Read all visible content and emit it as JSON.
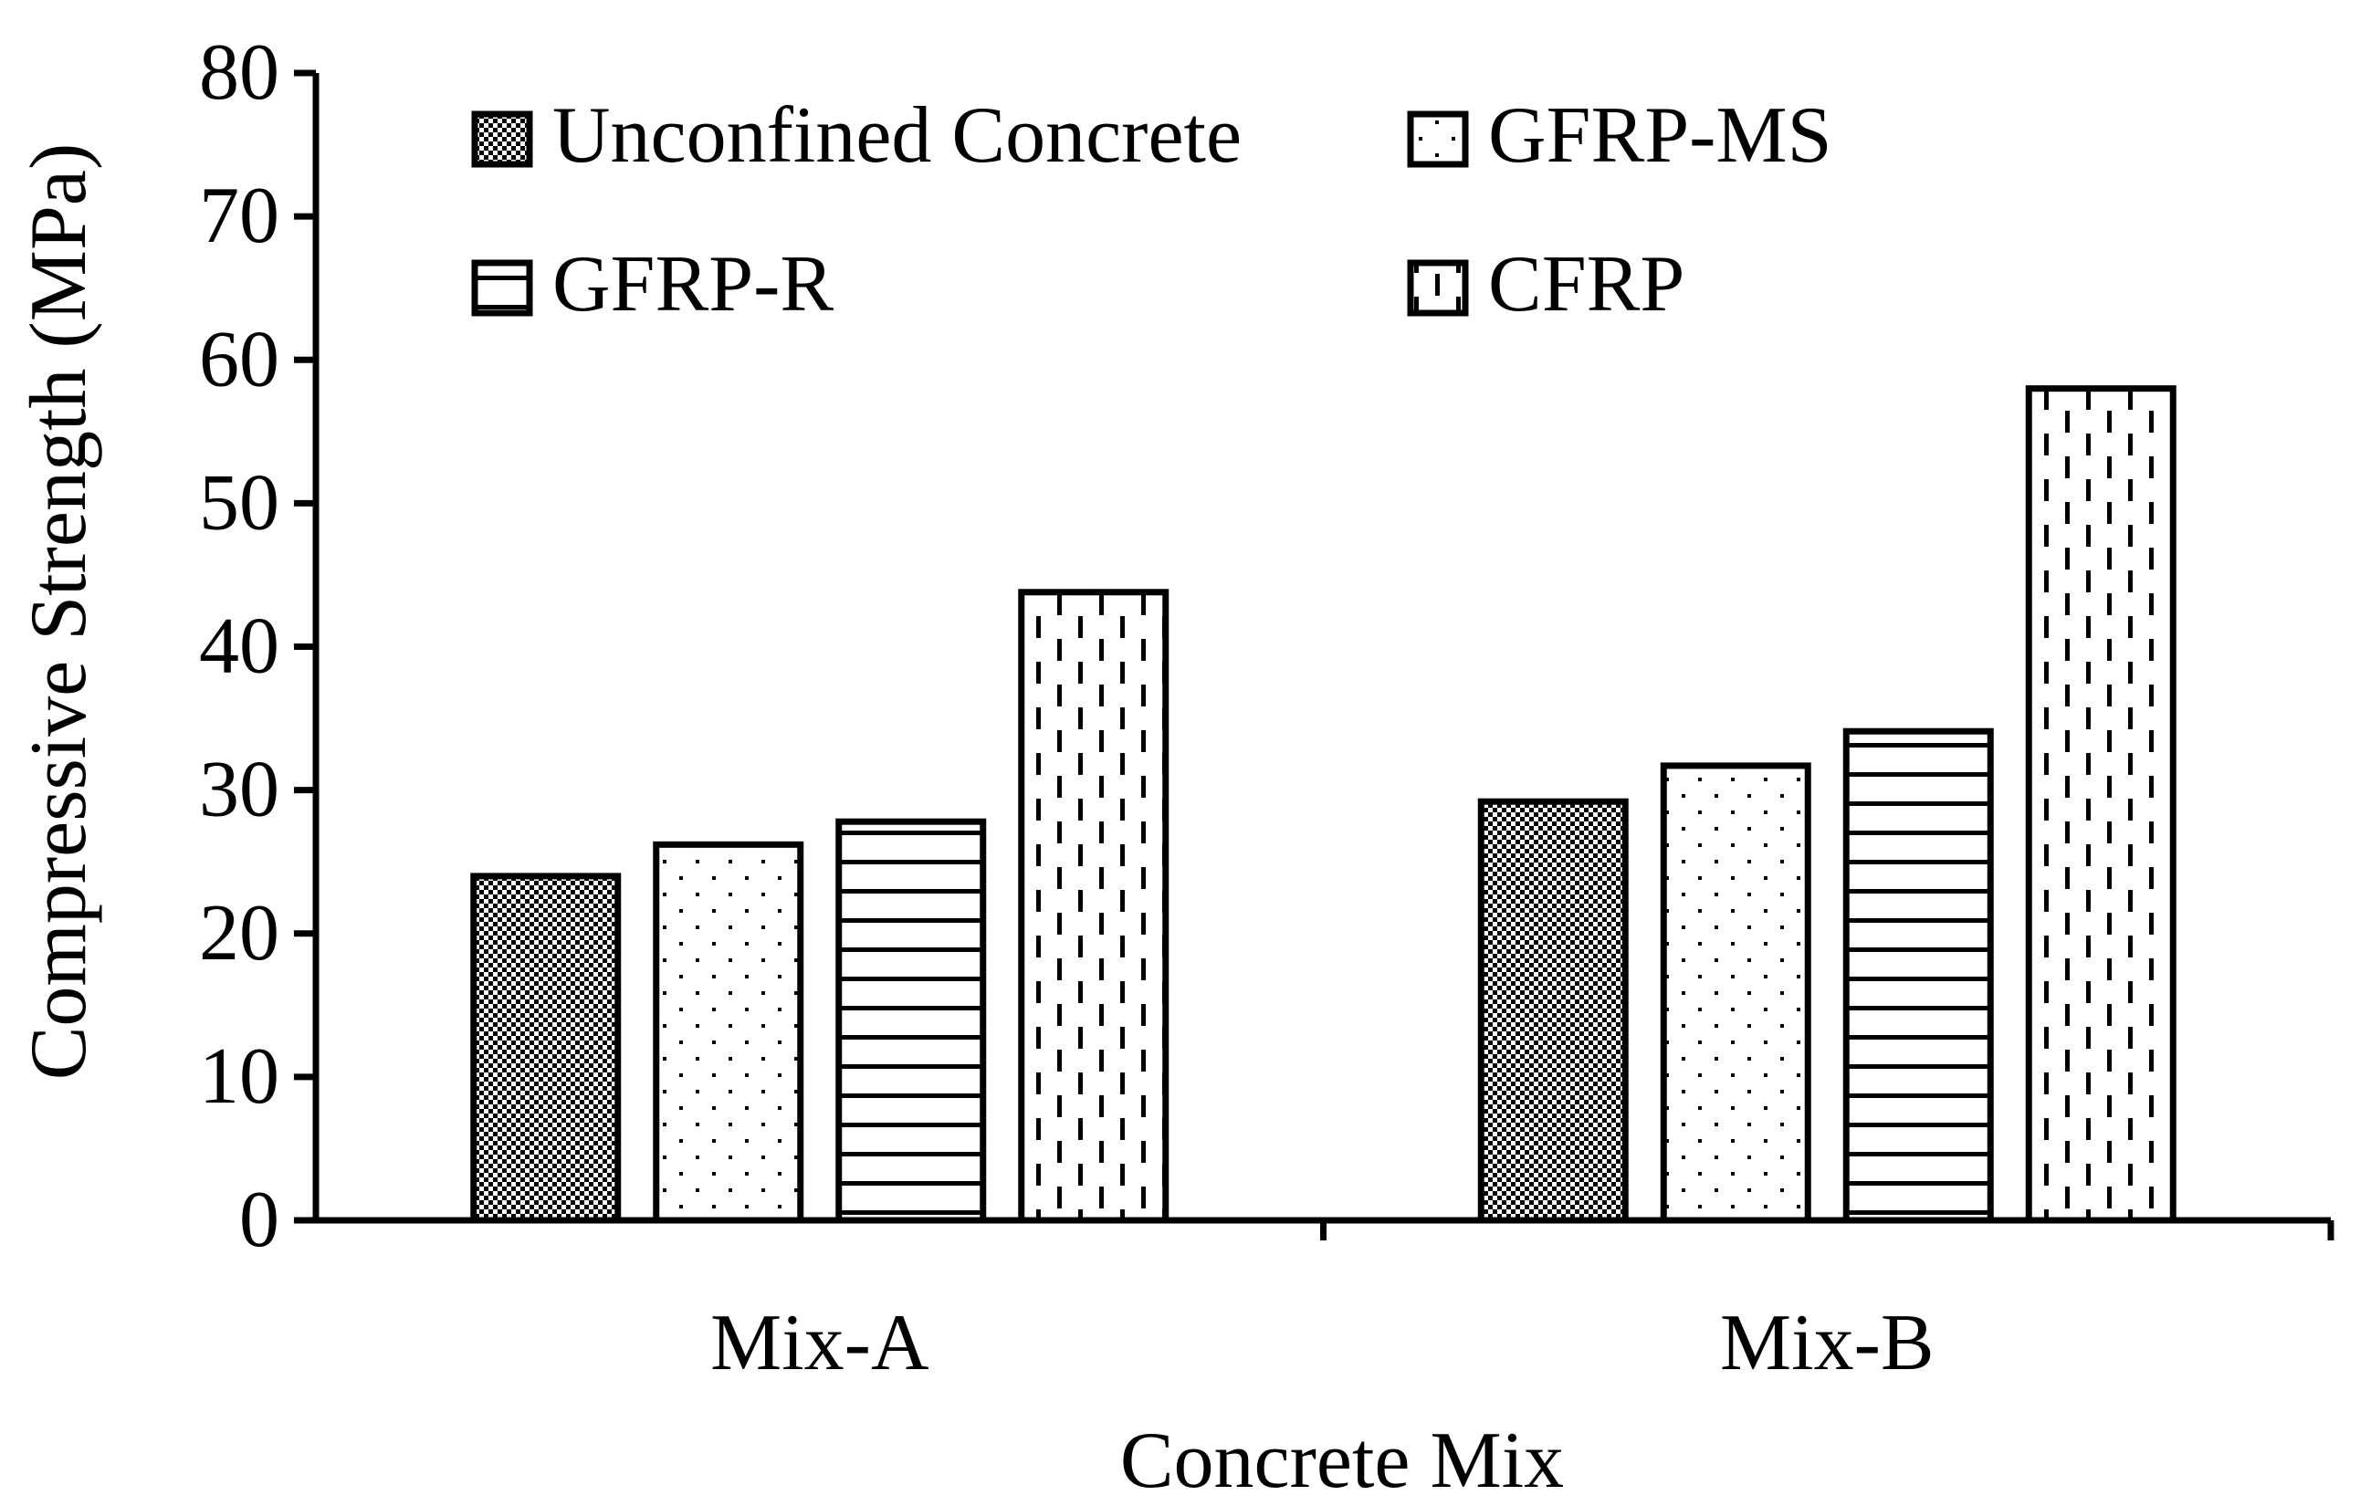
{
  "chart_data": {
    "type": "bar",
    "xlabel": "Concrete Mix",
    "ylabel": "Compressive Strength (MPa)",
    "categories": [
      "Mix-A",
      "Mix-B"
    ],
    "ylim": [
      0,
      80
    ],
    "yticks": [
      0,
      10,
      20,
      30,
      40,
      50,
      60,
      70,
      80
    ],
    "grid": false,
    "legend_position": "top-left",
    "series": [
      {
        "name": "Unconfined Concrete",
        "pattern": "checker",
        "values": [
          24,
          29.2
        ]
      },
      {
        "name": "GFRP-MS",
        "pattern": "dots",
        "values": [
          26.2,
          31.7
        ]
      },
      {
        "name": "GFRP-R",
        "pattern": "horizontal-lines",
        "values": [
          27.8,
          34.1
        ]
      },
      {
        "name": "CFRP",
        "pattern": "vertical-dashes",
        "values": [
          43.8,
          58
        ]
      }
    ],
    "colors": {
      "stroke": "#000000",
      "background": "#ffffff"
    }
  }
}
